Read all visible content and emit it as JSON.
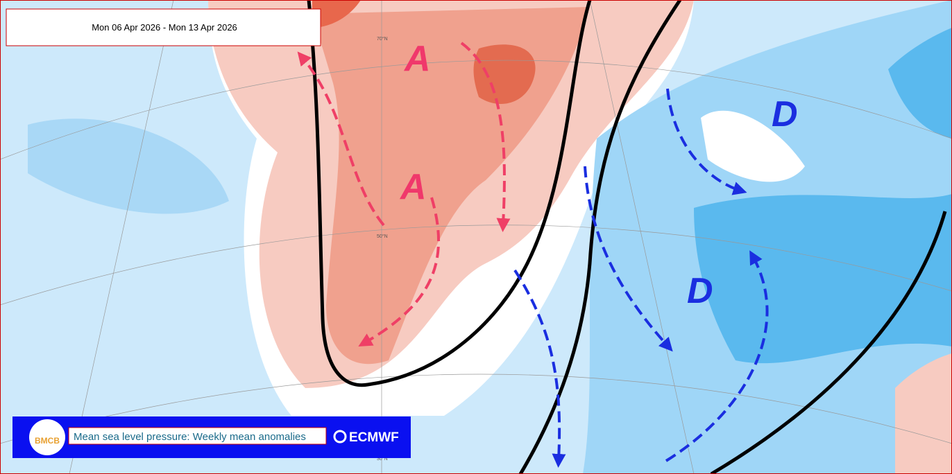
{
  "header": {
    "date_range": "Mon 06 Apr 2026 - Mon 13 Apr 2026"
  },
  "map": {
    "labels": [
      {
        "text": "A"
      },
      {
        "text": "A"
      },
      {
        "text": "D"
      },
      {
        "text": "D"
      }
    ],
    "latitude_labels": [
      "70°N",
      "50°N",
      "30°N"
    ]
  },
  "footer": {
    "logo": "BMCB",
    "caption": "Mean sea level pressure: Weekly mean anomalies",
    "brand": "ECMWF"
  }
}
